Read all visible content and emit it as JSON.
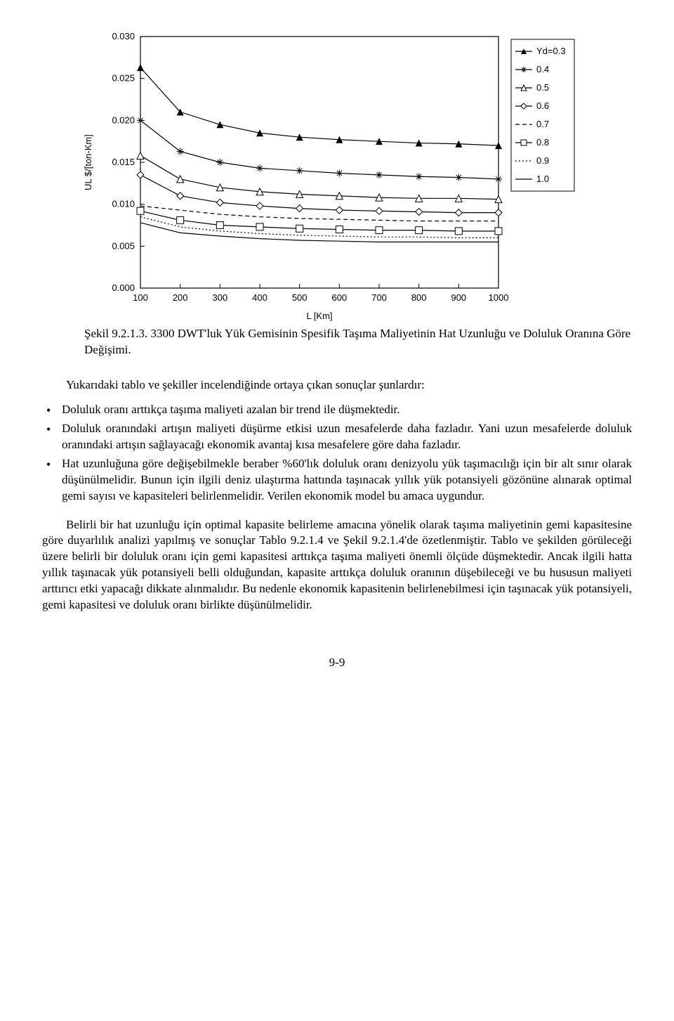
{
  "chart": {
    "type": "line",
    "xlabel": "L [Km]",
    "ylabel": "UL $/[ton-Km]",
    "xlim": [
      100,
      1000
    ],
    "ylim": [
      0.0,
      0.03
    ],
    "xtick_step": 100,
    "ytick_step": 0.005,
    "xticks": [
      100,
      200,
      300,
      400,
      500,
      600,
      700,
      800,
      900,
      1000
    ],
    "yticks": [
      "0.000",
      "0.005",
      "0.010",
      "0.015",
      "0.020",
      "0.025",
      "0.030"
    ],
    "axis_color": "#000000",
    "background_color": "#ffffff",
    "label_fontsize": 13,
    "tick_fontsize": 13,
    "line_color": "#000000",
    "line_width": 1.2,
    "marker_size": 5,
    "legend": {
      "position": "right",
      "border_color": "#000000",
      "fontsize": 13,
      "items": [
        {
          "label": "Yd=0.3",
          "marker": "triangle",
          "dash": "solid"
        },
        {
          "label": "0.4",
          "marker": "star",
          "dash": "solid"
        },
        {
          "label": "0.5",
          "marker": "otriangle",
          "dash": "solid"
        },
        {
          "label": "0.6",
          "marker": "diamond",
          "dash": "solid"
        },
        {
          "label": "0.7",
          "marker": "none",
          "dash": "dash"
        },
        {
          "label": "0.8",
          "marker": "square",
          "dash": "solid"
        },
        {
          "label": "0.9",
          "marker": "none",
          "dash": "dot"
        },
        {
          "label": "1.0",
          "marker": "none",
          "dash": "solid"
        }
      ]
    },
    "series": [
      {
        "name": "Yd=0.3",
        "marker": "triangle",
        "dash": "solid",
        "x": [
          100,
          200,
          300,
          400,
          500,
          600,
          700,
          800,
          900,
          1000
        ],
        "y": [
          0.0263,
          0.021,
          0.0195,
          0.0185,
          0.018,
          0.0177,
          0.0175,
          0.0173,
          0.0172,
          0.017
        ]
      },
      {
        "name": "0.4",
        "marker": "star",
        "dash": "solid",
        "x": [
          100,
          200,
          300,
          400,
          500,
          600,
          700,
          800,
          900,
          1000
        ],
        "y": [
          0.02,
          0.0163,
          0.015,
          0.0143,
          0.014,
          0.0137,
          0.0135,
          0.0133,
          0.0132,
          0.013
        ]
      },
      {
        "name": "0.5",
        "marker": "otriangle",
        "dash": "solid",
        "x": [
          100,
          200,
          300,
          400,
          500,
          600,
          700,
          800,
          900,
          1000
        ],
        "y": [
          0.0158,
          0.013,
          0.012,
          0.0115,
          0.0112,
          0.011,
          0.0108,
          0.0107,
          0.0107,
          0.0106
        ]
      },
      {
        "name": "0.6",
        "marker": "diamond",
        "dash": "solid",
        "x": [
          100,
          200,
          300,
          400,
          500,
          600,
          700,
          800,
          900,
          1000
        ],
        "y": [
          0.0135,
          0.011,
          0.0102,
          0.0098,
          0.0095,
          0.0093,
          0.0092,
          0.0091,
          0.009,
          0.009
        ]
      },
      {
        "name": "0.7",
        "marker": "none",
        "dash": "dash",
        "x": [
          100,
          200,
          300,
          400,
          500,
          600,
          700,
          800,
          900,
          1000
        ],
        "y": [
          0.0098,
          0.0093,
          0.0088,
          0.0085,
          0.0083,
          0.0082,
          0.0081,
          0.008,
          0.008,
          0.008
        ]
      },
      {
        "name": "0.8",
        "marker": "square",
        "dash": "solid",
        "x": [
          100,
          200,
          300,
          400,
          500,
          600,
          700,
          800,
          900,
          1000
        ],
        "y": [
          0.0092,
          0.0081,
          0.0075,
          0.0073,
          0.0071,
          0.007,
          0.0069,
          0.0069,
          0.0068,
          0.0068
        ]
      },
      {
        "name": "0.9",
        "marker": "none",
        "dash": "dot",
        "x": [
          100,
          200,
          300,
          400,
          500,
          600,
          700,
          800,
          900,
          1000
        ],
        "y": [
          0.0085,
          0.0073,
          0.0068,
          0.0065,
          0.0063,
          0.0062,
          0.0061,
          0.0061,
          0.006,
          0.006
        ]
      },
      {
        "name": "1.0",
        "marker": "none",
        "dash": "solid",
        "x": [
          100,
          200,
          300,
          400,
          500,
          600,
          700,
          800,
          900,
          1000
        ],
        "y": [
          0.0078,
          0.0066,
          0.0062,
          0.0059,
          0.0057,
          0.0056,
          0.0055,
          0.0055,
          0.0055,
          0.0055
        ]
      }
    ]
  },
  "caption_a": "Şekil 9.2.1.3.",
  "caption_b": "3300 DWT'luk Yük Gemisinin Spesifik Taşıma Maliyetinin Hat Uzunluğu ve Doluluk Oranına Göre Değişimi.",
  "intro": "Yukarıdaki tablo ve şekiller incelendiğinde ortaya çıkan sonuçlar şunlardır:",
  "bullets": [
    "Doluluk oranı arttıkça taşıma maliyeti azalan bir trend ile düşmektedir.",
    "Doluluk oranındaki artışın maliyeti düşürme etkisi uzun mesafelerde daha fazladır. Yani uzun mesafelerde doluluk oranındaki artışın sağlayacağı ekonomik avantaj kısa mesafelere göre daha fazladır.",
    "Hat uzunluğuna göre değişebilmekle beraber %60'lık doluluk oranı denizyolu yük taşımacılığı için bir alt sınır olarak düşünülmelidir. Bunun için ilgili deniz ulaştırma hattında taşınacak yıllık yük potansiyeli gözönüne alınarak optimal gemi sayısı ve kapasiteleri belirlenmelidir. Verilen ekonomik model bu amaca uygundur."
  ],
  "para": "Belirli bir hat uzunluğu için optimal kapasite belirleme amacına yönelik olarak taşıma maliyetinin gemi kapasitesine göre duyarlılık analizi yapılmış ve sonuçlar Tablo 9.2.1.4 ve Şekil 9.2.1.4'de özetlenmiştir. Tablo ve şekilden görüleceği üzere belirli bir doluluk oranı için gemi kapasitesi arttıkça taşıma maliyeti önemli ölçüde düşmektedir. Ancak ilgili hatta yıllık taşınacak yük potansiyeli belli olduğundan, kapasite arttıkça doluluk oranının düşebileceği ve bu hususun maliyeti arttırıcı etki yapacağı dikkate alınmalıdır. Bu nedenle ekonomik kapasitenin belirlenebilmesi için taşınacak yük potansiyeli, gemi kapasitesi ve doluluk oranı birlikte düşünülmelidir.",
  "pagenum": "9-9"
}
